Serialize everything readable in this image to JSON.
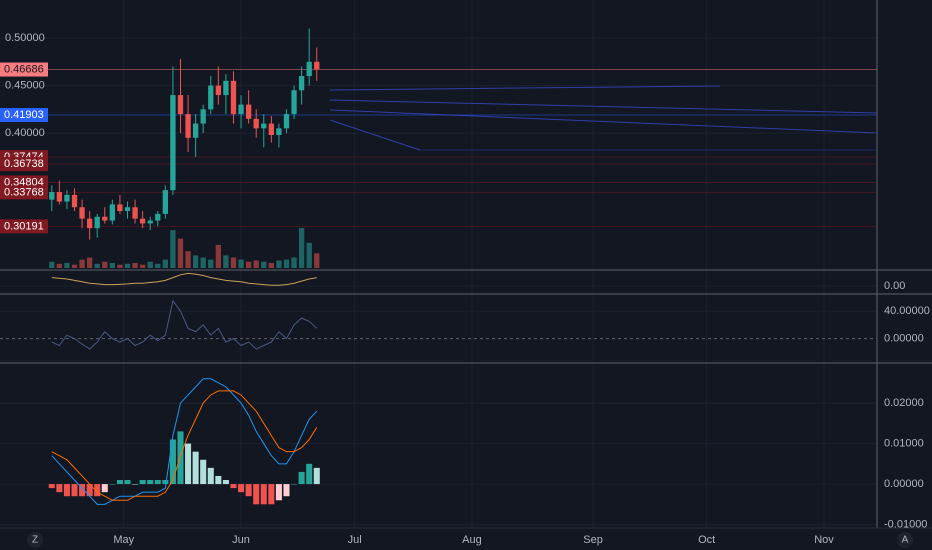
{
  "chart_data": [
    {
      "type": "candlestick",
      "x": [
        0,
        2,
        4,
        6,
        8,
        10,
        12,
        14,
        16,
        18,
        20,
        22,
        24,
        26,
        28,
        30,
        32,
        34,
        36,
        38,
        40,
        42,
        44,
        46,
        48,
        50,
        52,
        54,
        56,
        58,
        60,
        62,
        64,
        66,
        68,
        70
      ],
      "open": [
        0.33,
        0.338,
        0.328,
        0.335,
        0.322,
        0.31,
        0.3,
        0.312,
        0.308,
        0.325,
        0.318,
        0.322,
        0.31,
        0.305,
        0.308,
        0.315,
        0.34,
        0.44,
        0.42,
        0.395,
        0.41,
        0.425,
        0.45,
        0.44,
        0.455,
        0.42,
        0.43,
        0.415,
        0.405,
        0.41,
        0.398,
        0.405,
        0.42,
        0.445,
        0.46,
        0.475
      ],
      "high": [
        0.345,
        0.35,
        0.34,
        0.342,
        0.33,
        0.318,
        0.315,
        0.322,
        0.33,
        0.335,
        0.328,
        0.33,
        0.318,
        0.312,
        0.318,
        0.345,
        0.47,
        0.478,
        0.44,
        0.42,
        0.43,
        0.46,
        0.47,
        0.462,
        0.465,
        0.44,
        0.445,
        0.425,
        0.42,
        0.418,
        0.41,
        0.425,
        0.45,
        0.47,
        0.51,
        0.49
      ],
      "low": [
        0.318,
        0.325,
        0.32,
        0.318,
        0.3,
        0.288,
        0.29,
        0.305,
        0.304,
        0.315,
        0.31,
        0.305,
        0.3,
        0.298,
        0.302,
        0.31,
        0.335,
        0.4,
        0.38,
        0.375,
        0.4,
        0.42,
        0.43,
        0.42,
        0.41,
        0.405,
        0.41,
        0.395,
        0.385,
        0.39,
        0.385,
        0.4,
        0.415,
        0.43,
        0.45,
        0.455
      ],
      "close": [
        0.338,
        0.328,
        0.335,
        0.322,
        0.31,
        0.3,
        0.312,
        0.308,
        0.325,
        0.318,
        0.322,
        0.31,
        0.305,
        0.308,
        0.315,
        0.34,
        0.44,
        0.42,
        0.395,
        0.41,
        0.425,
        0.45,
        0.44,
        0.455,
        0.42,
        0.43,
        0.415,
        0.405,
        0.41,
        0.398,
        0.405,
        0.42,
        0.445,
        0.46,
        0.475,
        0.467
      ],
      "volume": [
        15,
        10,
        12,
        8,
        20,
        25,
        10,
        15,
        12,
        8,
        10,
        12,
        8,
        15,
        10,
        20,
        90,
        70,
        40,
        30,
        25,
        20,
        55,
        30,
        25,
        20,
        15,
        18,
        15,
        12,
        18,
        20,
        25,
        95,
        60,
        35
      ],
      "up_color": "#26a69a",
      "down_color": "#ef5350",
      "ylim": [
        0.256,
        0.54
      ],
      "yticks": [
        {
          "value": 0.5,
          "label": "0.50000"
        },
        {
          "value": 0.45,
          "label": "0.45000"
        },
        {
          "value": 0.4,
          "label": "0.40000"
        }
      ],
      "price_lines": [
        {
          "value": 0.46686,
          "color": "#f77c80",
          "text_color": "#131722"
        },
        {
          "value": 0.41903,
          "color": "#2962ff",
          "text_color": "#ffffff"
        },
        {
          "value": 0.37474,
          "color": "#801922",
          "text_color": "#ffffff"
        },
        {
          "value": 0.36738,
          "color": "#801922",
          "text_color": "#ffffff"
        },
        {
          "value": 0.34804,
          "color": "#801922",
          "text_color": "#ffffff"
        },
        {
          "value": 0.33768,
          "color": "#801922",
          "text_color": "#ffffff"
        },
        {
          "value": 0.30191,
          "color": "#801922",
          "text_color": "#ffffff"
        }
      ],
      "xlim": [
        -1,
        218
      ],
      "xticks": [
        {
          "value": 19,
          "label": "May"
        },
        {
          "value": 50,
          "label": "Jun"
        },
        {
          "value": 80,
          "label": "Jul"
        },
        {
          "value": 111,
          "label": "Aug"
        },
        {
          "value": 143,
          "label": "Sep"
        },
        {
          "value": 173,
          "label": "Oct"
        },
        {
          "value": 204,
          "label": "Nov"
        }
      ]
    },
    {
      "type": "line",
      "x": [
        0,
        2,
        4,
        6,
        8,
        10,
        12,
        14,
        16,
        18,
        20,
        22,
        24,
        26,
        28,
        30,
        32,
        34,
        36,
        38,
        40,
        42,
        44,
        46,
        48,
        50,
        52,
        54,
        56,
        58,
        60,
        62,
        64,
        66,
        68,
        70
      ],
      "series": [
        {
          "color": "#c9a15b",
          "values": [
            0.6,
            0.55,
            0.5,
            0.4,
            0.3,
            0.2,
            0.15,
            0.1,
            0.1,
            0.12,
            0.15,
            0.2,
            0.2,
            0.25,
            0.3,
            0.4,
            0.6,
            0.8,
            0.9,
            0.85,
            0.75,
            0.6,
            0.5,
            0.4,
            0.35,
            0.3,
            0.2,
            0.15,
            0.1,
            0.05,
            0.05,
            0.1,
            0.2,
            0.35,
            0.5,
            0.6
          ]
        }
      ],
      "ylim": [
        -0.5,
        1
      ],
      "yticks": [
        {
          "value": 0,
          "label": "0.00"
        }
      ]
    },
    {
      "type": "line",
      "x": [
        0,
        2,
        4,
        6,
        8,
        10,
        12,
        14,
        16,
        18,
        20,
        22,
        24,
        26,
        28,
        30,
        32,
        34,
        36,
        38,
        40,
        42,
        44,
        46,
        48,
        50,
        52,
        54,
        56,
        58,
        60,
        62,
        64,
        66,
        68,
        70
      ],
      "series": [
        {
          "color": "#4a5a85",
          "values": [
            -5,
            -10,
            5,
            0,
            -8,
            -15,
            -5,
            10,
            0,
            -5,
            0,
            -10,
            -5,
            5,
            -3,
            5,
            55,
            40,
            15,
            10,
            20,
            5,
            15,
            -5,
            0,
            -10,
            -5,
            -15,
            -10,
            -5,
            10,
            0,
            20,
            30,
            25,
            15
          ]
        }
      ],
      "ylim": [
        -34,
        62
      ],
      "yticks": [
        {
          "value": 40,
          "label": "40.00000"
        },
        {
          "value": 0,
          "label": "0.00000"
        }
      ]
    },
    {
      "type": "macd",
      "x": [
        0,
        2,
        4,
        6,
        8,
        10,
        12,
        14,
        16,
        18,
        20,
        22,
        24,
        26,
        28,
        30,
        32,
        34,
        36,
        38,
        40,
        42,
        44,
        46,
        48,
        50,
        52,
        54,
        56,
        58,
        60,
        62,
        64,
        66,
        68,
        70
      ],
      "histogram": [
        -0.001,
        -0.002,
        -0.003,
        -0.003,
        -0.003,
        -0.003,
        -0.003,
        -0.002,
        0.0,
        0.001,
        0.001,
        0.0,
        0.001,
        0.001,
        0.001,
        0.001,
        0.011,
        0.013,
        0.01,
        0.008,
        0.006,
        0.004,
        0.002,
        0.001,
        -0.001,
        -0.002,
        -0.003,
        -0.005,
        -0.005,
        -0.005,
        -0.004,
        -0.003,
        0.0,
        0.003,
        0.005,
        0.004
      ],
      "hist_colors": {
        "pos_grow": "#26a69a",
        "pos_fall": "#b2dfdb",
        "neg_fall": "#ef5350",
        "neg_grow": "#ffcdd2"
      },
      "series": [
        {
          "color": "#2196f3",
          "values": [
            0.007,
            0.005,
            0.003,
            0.001,
            -0.001,
            -0.003,
            -0.005,
            -0.005,
            -0.004,
            -0.003,
            -0.003,
            -0.003,
            -0.002,
            -0.002,
            -0.002,
            -0.001,
            0.012,
            0.02,
            0.022,
            0.024,
            0.026,
            0.026,
            0.025,
            0.024,
            0.022,
            0.02,
            0.017,
            0.013,
            0.01,
            0.007,
            0.005,
            0.005,
            0.008,
            0.012,
            0.016,
            0.018
          ]
        },
        {
          "color": "#ff6d00",
          "values": [
            0.008,
            0.007,
            0.006,
            0.004,
            0.002,
            0.0,
            -0.002,
            -0.003,
            -0.004,
            -0.004,
            -0.004,
            -0.003,
            -0.003,
            -0.003,
            -0.003,
            -0.002,
            0.001,
            0.007,
            0.012,
            0.016,
            0.02,
            0.022,
            0.023,
            0.023,
            0.023,
            0.022,
            0.02,
            0.018,
            0.015,
            0.012,
            0.009,
            0.008,
            0.008,
            0.009,
            0.011,
            0.014
          ]
        }
      ],
      "ylim": [
        -0.0106,
        0.0294
      ],
      "yticks": [
        {
          "value": 0.02,
          "label": "0.02000"
        },
        {
          "value": 0.01,
          "label": "0.01000"
        },
        {
          "value": 0,
          "label": "0.00000"
        },
        {
          "value": -0.01,
          "label": "-0.01000"
        }
      ]
    }
  ],
  "ui": {
    "left_button": "Z",
    "right_button": "A"
  }
}
